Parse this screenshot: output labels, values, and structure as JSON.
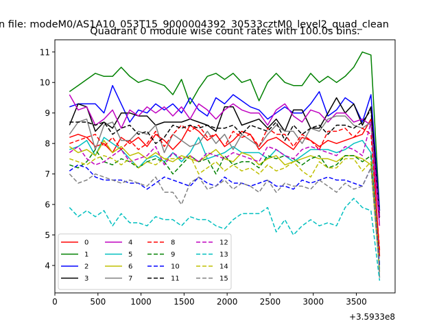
{
  "figure": {
    "suptitle": "n file: modeM0/AS1A10_053T15_9000004392_30533cztM0_level2_quad_clean",
    "title": "Quadrant 0 module wise count rates with 100.0s bins.",
    "offset_label": "+3.5933e8"
  },
  "chart_data": {
    "type": "line",
    "title": "Quadrant 0 module wise count rates with 100.0s bins.",
    "xlim": [
      0,
      3950
    ],
    "ylim": [
      3.1,
      11.4
    ],
    "x_offset": "+3.5933e8",
    "xticks": [
      0,
      500,
      1000,
      1500,
      2000,
      2500,
      3000,
      3500
    ],
    "yticks": [
      4,
      5,
      6,
      7,
      8,
      9,
      10,
      11
    ],
    "grid": false,
    "legend": {
      "placement": "lower-left",
      "columns": 4
    },
    "x": [
      170,
      270,
      370,
      470,
      570,
      670,
      770,
      870,
      970,
      1070,
      1170,
      1270,
      1370,
      1470,
      1570,
      1670,
      1770,
      1870,
      1970,
      2070,
      2170,
      2270,
      2370,
      2470,
      2570,
      2670,
      2770,
      2870,
      2970,
      3070,
      3170,
      3270,
      3370,
      3470,
      3570,
      3670,
      3770
    ],
    "series": [
      {
        "name": "0",
        "color": "#ff0000",
        "dash": "solid",
        "values": [
          8.2,
          8.3,
          8.2,
          7.9,
          8.0,
          7.7,
          8.2,
          8.0,
          8.2,
          7.9,
          8.3,
          8.1,
          7.8,
          8.1,
          8.6,
          8.4,
          8.1,
          8.3,
          7.9,
          8.1,
          8.4,
          8.3,
          7.8,
          8.1,
          8.2,
          8.0,
          7.8,
          8.2,
          8.1,
          7.9,
          8.1,
          8.0,
          8.1,
          8.2,
          8.3,
          8.8,
          4.3
        ]
      },
      {
        "name": "1",
        "color": "#008000",
        "dash": "solid",
        "values": [
          9.7,
          9.9,
          10.1,
          10.3,
          10.2,
          10.2,
          10.5,
          10.2,
          10.0,
          10.1,
          10.0,
          9.9,
          9.6,
          10.1,
          9.3,
          9.8,
          10.2,
          10.3,
          10.1,
          10.3,
          10.0,
          10.1,
          9.4,
          10.0,
          10.3,
          10.0,
          9.9,
          9.9,
          10.3,
          10.0,
          10.2,
          10.0,
          10.2,
          10.5,
          11.0,
          10.9,
          5.8
        ]
      },
      {
        "name": "2",
        "color": "#0000ff",
        "dash": "solid",
        "values": [
          9.2,
          9.3,
          9.3,
          9.3,
          9.0,
          9.9,
          9.3,
          8.7,
          9.1,
          9.0,
          9.3,
          9.1,
          9.3,
          9.0,
          9.5,
          9.1,
          8.9,
          9.5,
          9.3,
          9.6,
          9.4,
          9.2,
          9.1,
          8.8,
          9.0,
          9.2,
          9.0,
          9.0,
          9.3,
          9.7,
          8.9,
          9.1,
          9.5,
          9.3,
          8.7,
          9.6,
          5.8
        ]
      },
      {
        "name": "3",
        "color": "#000000",
        "dash": "solid",
        "values": [
          8.6,
          9.3,
          9.2,
          8.4,
          8.7,
          8.5,
          9.0,
          9.0,
          8.9,
          8.9,
          8.6,
          8.7,
          8.7,
          8.7,
          8.8,
          8.7,
          8.6,
          8.4,
          9.2,
          9.2,
          8.6,
          8.7,
          8.8,
          8.5,
          8.8,
          8.4,
          9.1,
          9.1,
          8.5,
          8.5,
          9.0,
          9.5,
          9.0,
          9.3,
          8.6,
          9.2,
          5.6
        ]
      },
      {
        "name": "4",
        "color": "#bf00bf",
        "dash": "solid",
        "values": [
          9.6,
          9.1,
          9.2,
          8.6,
          8.8,
          9.1,
          8.5,
          9.1,
          8.9,
          9.2,
          9.0,
          9.2,
          8.9,
          9.2,
          8.8,
          9.3,
          9.1,
          8.8,
          9.1,
          9.3,
          9.1,
          9.0,
          9.0,
          8.6,
          9.1,
          9.3,
          8.9,
          8.7,
          9.1,
          9.0,
          8.7,
          9.0,
          9.0,
          8.7,
          8.8,
          8.6,
          5.3
        ]
      },
      {
        "name": "5",
        "color": "#00bfbf",
        "dash": "solid",
        "values": [
          7.8,
          7.9,
          8.1,
          7.6,
          8.2,
          8.0,
          7.8,
          7.5,
          7.2,
          7.5,
          7.6,
          7.4,
          7.7,
          7.4,
          7.7,
          8.2,
          7.5,
          7.6,
          7.7,
          7.9,
          7.7,
          7.7,
          7.7,
          7.5,
          7.8,
          7.6,
          7.4,
          7.6,
          7.8,
          7.8,
          7.8,
          7.7,
          7.8,
          8.0,
          8.1,
          7.7,
          3.9
        ]
      },
      {
        "name": "6",
        "color": "#bfbf00",
        "dash": "solid",
        "values": [
          7.9,
          7.7,
          7.8,
          7.6,
          8.1,
          7.7,
          7.9,
          7.6,
          7.7,
          7.5,
          7.7,
          7.5,
          7.4,
          7.6,
          7.5,
          7.4,
          7.6,
          7.8,
          7.5,
          7.4,
          7.7,
          7.6,
          7.3,
          7.5,
          7.6,
          7.3,
          7.4,
          7.5,
          7.6,
          7.5,
          7.5,
          7.4,
          7.6,
          7.6,
          7.5,
          7.3,
          3.8
        ]
      },
      {
        "name": "7",
        "color": "#808080",
        "dash": "solid",
        "values": [
          8.3,
          8.7,
          8.8,
          7.8,
          8.6,
          8.7,
          8.1,
          8.1,
          8.4,
          8.3,
          8.6,
          7.7,
          8.3,
          8.1,
          7.9,
          8.0,
          8.4,
          8.0,
          8.3,
          7.8,
          8.3,
          8.1,
          7.9,
          8.3,
          8.6,
          8.4,
          8.4,
          8.0,
          8.5,
          8.4,
          8.8,
          8.9,
          8.9,
          8.6,
          8.5,
          8.7,
          3.6
        ]
      },
      {
        "name": "8",
        "color": "#ff0000",
        "dash": "dashed",
        "values": [
          8.0,
          8.1,
          8.2,
          8.3,
          7.9,
          8.2,
          7.8,
          8.1,
          7.8,
          8.0,
          8.4,
          7.9,
          8.3,
          8.6,
          8.4,
          8.6,
          8.2,
          8.3,
          7.9,
          8.4,
          8.2,
          8.3,
          7.9,
          8.5,
          8.3,
          8.3,
          7.9,
          8.3,
          8.1,
          7.8,
          8.4,
          8.4,
          8.5,
          8.2,
          8.5,
          8.3,
          4.5
        ]
      },
      {
        "name": "9",
        "color": "#008000",
        "dash": "dashed",
        "values": [
          7.3,
          7.2,
          7.4,
          7.8,
          7.4,
          7.3,
          7.5,
          7.4,
          7.2,
          7.4,
          7.5,
          7.4,
          7.0,
          7.3,
          7.6,
          7.4,
          7.5,
          7.0,
          7.6,
          7.3,
          7.4,
          7.4,
          7.2,
          7.6,
          7.5,
          7.6,
          7.5,
          7.3,
          7.5,
          7.6,
          7.2,
          7.3,
          7.6,
          7.6,
          7.4,
          7.6,
          4.0
        ]
      },
      {
        "name": "10",
        "color": "#0000ff",
        "dash": "dashed",
        "values": [
          7.1,
          7.3,
          7.2,
          6.9,
          6.8,
          6.8,
          6.8,
          6.7,
          6.7,
          6.5,
          6.7,
          6.9,
          6.8,
          6.7,
          6.6,
          6.9,
          6.7,
          6.6,
          6.9,
          6.7,
          6.7,
          6.6,
          6.7,
          6.8,
          6.6,
          6.6,
          6.5,
          6.8,
          6.7,
          6.8,
          6.9,
          6.8,
          6.8,
          6.7,
          6.6,
          7.2,
          4.0
        ]
      },
      {
        "name": "11",
        "color": "#000000",
        "dash": "dashed",
        "values": [
          8.7,
          8.7,
          8.7,
          8.6,
          8.7,
          8.3,
          8.5,
          8.6,
          8.3,
          8.4,
          8.0,
          8.2,
          8.6,
          8.5,
          8.6,
          8.5,
          8.6,
          8.5,
          8.5,
          8.6,
          8.3,
          8.6,
          8.5,
          8.4,
          8.7,
          8.1,
          8.6,
          8.3,
          8.5,
          8.6,
          8.3,
          8.6,
          8.6,
          8.5,
          8.7,
          9.1,
          5.5
        ]
      },
      {
        "name": "12",
        "color": "#bf00bf",
        "dash": "dashed",
        "values": [
          7.7,
          7.9,
          7.5,
          7.3,
          7.4,
          7.6,
          7.8,
          7.4,
          7.5,
          7.6,
          7.9,
          7.3,
          7.7,
          7.5,
          7.6,
          7.4,
          7.7,
          7.6,
          7.5,
          7.7,
          7.6,
          7.5,
          7.4,
          7.9,
          7.8,
          7.6,
          7.5,
          7.8,
          7.9,
          7.8,
          7.7,
          7.6,
          7.9,
          7.8,
          7.6,
          8.7,
          5.6
        ]
      },
      {
        "name": "13",
        "color": "#00bfbf",
        "dash": "dashed",
        "values": [
          5.9,
          5.6,
          5.8,
          5.6,
          5.8,
          5.3,
          5.7,
          5.4,
          5.4,
          5.3,
          5.6,
          5.5,
          5.5,
          5.3,
          5.6,
          5.5,
          5.5,
          5.3,
          5.2,
          5.5,
          5.7,
          5.7,
          5.7,
          5.9,
          5.1,
          5.5,
          5.0,
          5.3,
          5.5,
          5.3,
          5.4,
          5.3,
          5.9,
          6.2,
          5.9,
          5.8,
          3.5
        ]
      },
      {
        "name": "14",
        "color": "#bfbf00",
        "dash": "dashed",
        "values": [
          7.5,
          7.4,
          7.3,
          7.5,
          7.6,
          7.5,
          7.3,
          7.5,
          7.2,
          7.4,
          7.3,
          7.5,
          7.5,
          7.5,
          7.6,
          7.0,
          7.2,
          7.4,
          7.1,
          7.3,
          7.1,
          7.2,
          7.0,
          7.3,
          7.1,
          7.2,
          7.4,
          7.1,
          6.9,
          7.4,
          7.2,
          7.2,
          7.5,
          7.5,
          7.1,
          7.4,
          3.8
        ]
      },
      {
        "name": "15",
        "color": "#808080",
        "dash": "dashed",
        "values": [
          7.0,
          6.7,
          6.8,
          7.0,
          6.9,
          6.8,
          6.7,
          6.8,
          6.7,
          6.6,
          6.9,
          6.4,
          6.4,
          6.0,
          6.7,
          6.9,
          6.5,
          6.6,
          6.8,
          6.5,
          6.7,
          6.6,
          6.4,
          6.8,
          6.4,
          6.7,
          6.6,
          6.6,
          6.5,
          6.8,
          6.6,
          6.4,
          6.7,
          6.5,
          6.6,
          7.2,
          3.8
        ]
      }
    ]
  }
}
